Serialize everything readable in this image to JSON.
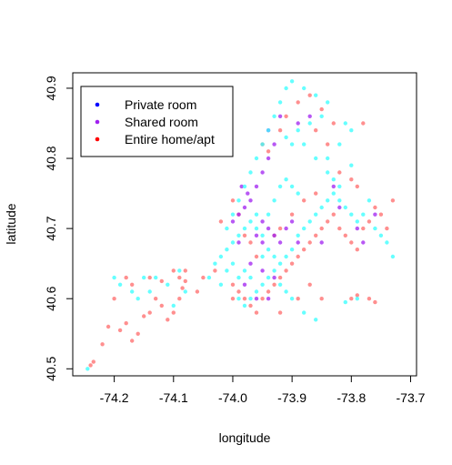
{
  "chart_data": {
    "type": "scatter",
    "xlabel": "longitude",
    "ylabel": "latitude",
    "xlim": [
      -74.27,
      -73.69
    ],
    "ylim": [
      40.49,
      40.922
    ],
    "x_ticks": [
      -74.2,
      -74.1,
      -74.0,
      -73.9,
      -73.8,
      -73.7
    ],
    "x_tick_labels": [
      "-74.2",
      "-74.1",
      "-74.0",
      "-73.9",
      "-73.8",
      "-73.7"
    ],
    "y_ticks": [
      40.5,
      40.6,
      40.7,
      40.8,
      40.9
    ],
    "y_tick_labels": [
      "40.5",
      "40.6",
      "40.7",
      "40.8",
      "40.9"
    ],
    "grid": false,
    "legend": {
      "position": "top-left",
      "entries": [
        {
          "label": "Private room",
          "color": "#0000ff"
        },
        {
          "label": "Shared room",
          "color": "#a020f0"
        },
        {
          "label": "Entire home/apt",
          "color": "#ff0000"
        }
      ]
    },
    "series": [
      {
        "color": "#ff6a6a",
        "points": [
          [
            -74.24,
            40.505
          ],
          [
            -74.235,
            40.51
          ],
          [
            -74.22,
            40.535
          ],
          [
            -74.21,
            40.56
          ],
          [
            -74.19,
            40.555
          ],
          [
            -74.18,
            40.565
          ],
          [
            -74.17,
            40.54
          ],
          [
            -74.16,
            40.55
          ],
          [
            -74.15,
            40.575
          ],
          [
            -74.14,
            40.58
          ],
          [
            -74.13,
            40.6
          ],
          [
            -74.12,
            40.59
          ],
          [
            -74.11,
            40.57
          ],
          [
            -74.1,
            40.58
          ],
          [
            -74.09,
            40.6
          ],
          [
            -74.085,
            40.615
          ],
          [
            -74.08,
            40.625
          ],
          [
            -74.2,
            40.6
          ],
          [
            -74.18,
            40.63
          ],
          [
            -74.17,
            40.62
          ],
          [
            -74.14,
            40.63
          ],
          [
            -74.12,
            40.625
          ],
          [
            -74.1,
            40.64
          ],
          [
            -74.09,
            40.63
          ],
          [
            -74.0,
            40.6
          ],
          [
            -73.99,
            40.61
          ],
          [
            -73.98,
            40.6
          ],
          [
            -73.97,
            40.59
          ],
          [
            -73.96,
            40.58
          ],
          [
            -73.95,
            40.6
          ],
          [
            -73.94,
            40.61
          ],
          [
            -73.93,
            40.62
          ],
          [
            -73.92,
            40.63
          ],
          [
            -73.91,
            40.64
          ],
          [
            -73.9,
            40.65
          ],
          [
            -73.89,
            40.66
          ],
          [
            -73.88,
            40.67
          ],
          [
            -73.87,
            40.68
          ],
          [
            -73.86,
            40.69
          ],
          [
            -73.85,
            40.7
          ],
          [
            -73.84,
            40.71
          ],
          [
            -73.83,
            40.72
          ],
          [
            -73.82,
            40.7
          ],
          [
            -73.81,
            40.69
          ],
          [
            -73.8,
            40.68
          ],
          [
            -73.79,
            40.67
          ],
          [
            -73.78,
            40.7
          ],
          [
            -73.77,
            40.71
          ],
          [
            -73.76,
            40.73
          ],
          [
            -73.75,
            40.72
          ],
          [
            -73.74,
            40.7
          ],
          [
            -73.73,
            40.74
          ],
          [
            -73.8,
            40.6
          ],
          [
            -73.79,
            40.605
          ],
          [
            -73.77,
            40.6
          ],
          [
            -73.76,
            40.595
          ],
          [
            -73.95,
            40.82
          ],
          [
            -73.94,
            40.81
          ],
          [
            -73.92,
            40.84
          ],
          [
            -73.91,
            40.86
          ],
          [
            -73.89,
            40.88
          ],
          [
            -73.87,
            40.89
          ],
          [
            -73.85,
            40.87
          ],
          [
            -73.83,
            40.85
          ],
          [
            -73.86,
            40.84
          ],
          [
            -73.84,
            40.82
          ],
          [
            -73.82,
            40.78
          ],
          [
            -73.8,
            40.77
          ],
          [
            -73.79,
            40.76
          ],
          [
            -73.78,
            40.85
          ],
          [
            -74.05,
            40.63
          ],
          [
            -74.03,
            40.64
          ],
          [
            -74.02,
            40.71
          ],
          [
            -74.0,
            40.74
          ],
          [
            -73.99,
            40.72
          ],
          [
            -73.98,
            40.69
          ],
          [
            -73.97,
            40.68
          ],
          [
            -73.96,
            40.66
          ],
          [
            -73.93,
            40.69
          ],
          [
            -73.92,
            40.7
          ],
          [
            -73.9,
            40.72
          ],
          [
            -73.88,
            40.74
          ],
          [
            -73.86,
            40.75
          ],
          [
            -73.85,
            40.6
          ],
          [
            -74.0,
            40.62
          ],
          [
            -73.92,
            40.58
          ],
          [
            -73.89,
            40.6
          ],
          [
            -73.87,
            40.62
          ],
          [
            -74.06,
            40.61
          ],
          [
            -74.08,
            40.64
          ]
        ]
      },
      {
        "color": "#a020f0",
        "points": [
          [
            -73.99,
            40.72
          ],
          [
            -73.98,
            40.73
          ],
          [
            -73.97,
            40.74
          ],
          [
            -73.96,
            40.76
          ],
          [
            -73.95,
            40.78
          ],
          [
            -73.94,
            40.8
          ],
          [
            -73.985,
            40.76
          ],
          [
            -73.975,
            40.75
          ],
          [
            -73.95,
            40.71
          ],
          [
            -73.94,
            40.7
          ],
          [
            -73.93,
            40.69
          ],
          [
            -73.92,
            40.68
          ],
          [
            -73.95,
            40.68
          ],
          [
            -73.96,
            40.69
          ],
          [
            -73.97,
            40.65
          ],
          [
            -73.95,
            40.64
          ],
          [
            -73.93,
            40.63
          ],
          [
            -73.91,
            40.7
          ],
          [
            -73.9,
            40.71
          ],
          [
            -73.89,
            40.68
          ],
          [
            -73.85,
            40.68
          ],
          [
            -73.83,
            40.76
          ],
          [
            -73.82,
            40.73
          ],
          [
            -73.79,
            40.7
          ],
          [
            -73.94,
            40.84
          ],
          [
            -73.93,
            40.82
          ],
          [
            -73.92,
            40.86
          ],
          [
            -73.89,
            40.85
          ],
          [
            -73.87,
            40.86
          ],
          [
            -74.0,
            40.71
          ],
          [
            -73.99,
            40.68
          ],
          [
            -73.96,
            40.6
          ],
          [
            -73.94,
            40.6
          ],
          [
            -73.98,
            40.62
          ],
          [
            -73.78,
            40.68
          ],
          [
            -73.76,
            40.72
          ]
        ]
      },
      {
        "color": "#33ffff",
        "points": [
          [
            -74.245,
            40.5
          ],
          [
            -74.2,
            40.63
          ],
          [
            -74.19,
            40.62
          ],
          [
            -74.17,
            40.61
          ],
          [
            -74.15,
            40.63
          ],
          [
            -74.13,
            40.63
          ],
          [
            -74.11,
            40.62
          ],
          [
            -74.09,
            40.64
          ],
          [
            -74.08,
            40.61
          ],
          [
            -74.1,
            40.59
          ],
          [
            -74.14,
            40.61
          ],
          [
            -74.16,
            40.6
          ],
          [
            -74.02,
            40.62
          ],
          [
            -74.01,
            40.64
          ],
          [
            -74.0,
            40.65
          ],
          [
            -73.99,
            40.63
          ],
          [
            -73.98,
            40.64
          ],
          [
            -73.97,
            40.63
          ],
          [
            -73.96,
            40.61
          ],
          [
            -73.95,
            40.62
          ],
          [
            -73.94,
            40.63
          ],
          [
            -73.93,
            40.64
          ],
          [
            -73.92,
            40.65
          ],
          [
            -73.91,
            40.66
          ],
          [
            -73.9,
            40.67
          ],
          [
            -73.89,
            40.69
          ],
          [
            -73.88,
            40.7
          ],
          [
            -73.87,
            40.71
          ],
          [
            -73.86,
            40.72
          ],
          [
            -73.85,
            40.73
          ],
          [
            -73.84,
            40.74
          ],
          [
            -73.83,
            40.75
          ],
          [
            -73.82,
            40.74
          ],
          [
            -73.81,
            40.73
          ],
          [
            -73.8,
            40.72
          ],
          [
            -73.79,
            40.71
          ],
          [
            -73.78,
            40.72
          ],
          [
            -73.77,
            40.74
          ],
          [
            -73.76,
            40.7
          ],
          [
            -73.75,
            40.69
          ],
          [
            -73.74,
            40.68
          ],
          [
            -73.73,
            40.66
          ],
          [
            -73.82,
            40.76
          ],
          [
            -73.83,
            40.77
          ],
          [
            -73.84,
            40.78
          ],
          [
            -73.8,
            40.79
          ],
          [
            -73.79,
            40.6
          ],
          [
            -73.81,
            40.595
          ],
          [
            -73.88,
            40.58
          ],
          [
            -73.86,
            40.57
          ],
          [
            -74.01,
            40.7
          ],
          [
            -74.0,
            40.72
          ],
          [
            -73.99,
            40.74
          ],
          [
            -73.98,
            40.76
          ],
          [
            -73.97,
            40.78
          ],
          [
            -73.96,
            40.8
          ],
          [
            -73.95,
            40.82
          ],
          [
            -73.94,
            40.84
          ],
          [
            -73.93,
            40.86
          ],
          [
            -73.92,
            40.88
          ],
          [
            -73.91,
            40.9
          ],
          [
            -73.9,
            40.91
          ],
          [
            -73.88,
            40.9
          ],
          [
            -73.86,
            40.89
          ],
          [
            -73.84,
            40.88
          ],
          [
            -73.85,
            40.86
          ],
          [
            -73.87,
            40.85
          ],
          [
            -73.89,
            40.84
          ],
          [
            -73.91,
            40.83
          ],
          [
            -73.9,
            40.82
          ],
          [
            -73.88,
            40.82
          ],
          [
            -73.86,
            40.8
          ],
          [
            -73.84,
            40.8
          ],
          [
            -73.82,
            40.82
          ],
          [
            -73.8,
            40.84
          ],
          [
            -73.81,
            40.85
          ],
          [
            -73.96,
            40.7
          ],
          [
            -73.95,
            40.69
          ],
          [
            -73.94,
            40.72
          ],
          [
            -73.93,
            40.74
          ],
          [
            -73.92,
            40.76
          ],
          [
            -73.91,
            40.77
          ],
          [
            -73.9,
            40.76
          ],
          [
            -73.89,
            40.75
          ],
          [
            -73.96,
            40.72
          ],
          [
            -73.97,
            40.71
          ],
          [
            -73.98,
            40.7
          ],
          [
            -73.99,
            40.69
          ],
          [
            -74.0,
            40.68
          ],
          [
            -74.01,
            40.67
          ],
          [
            -74.02,
            40.66
          ],
          [
            -74.03,
            40.65
          ],
          [
            -74.04,
            40.63
          ],
          [
            -73.95,
            40.66
          ],
          [
            -73.94,
            40.67
          ],
          [
            -73.93,
            40.66
          ],
          [
            -73.92,
            40.62
          ],
          [
            -73.91,
            40.61
          ],
          [
            -73.9,
            40.6
          ],
          [
            -73.97,
            40.6
          ],
          [
            -73.98,
            40.59
          ],
          [
            -73.99,
            40.6
          ]
        ]
      }
    ]
  }
}
